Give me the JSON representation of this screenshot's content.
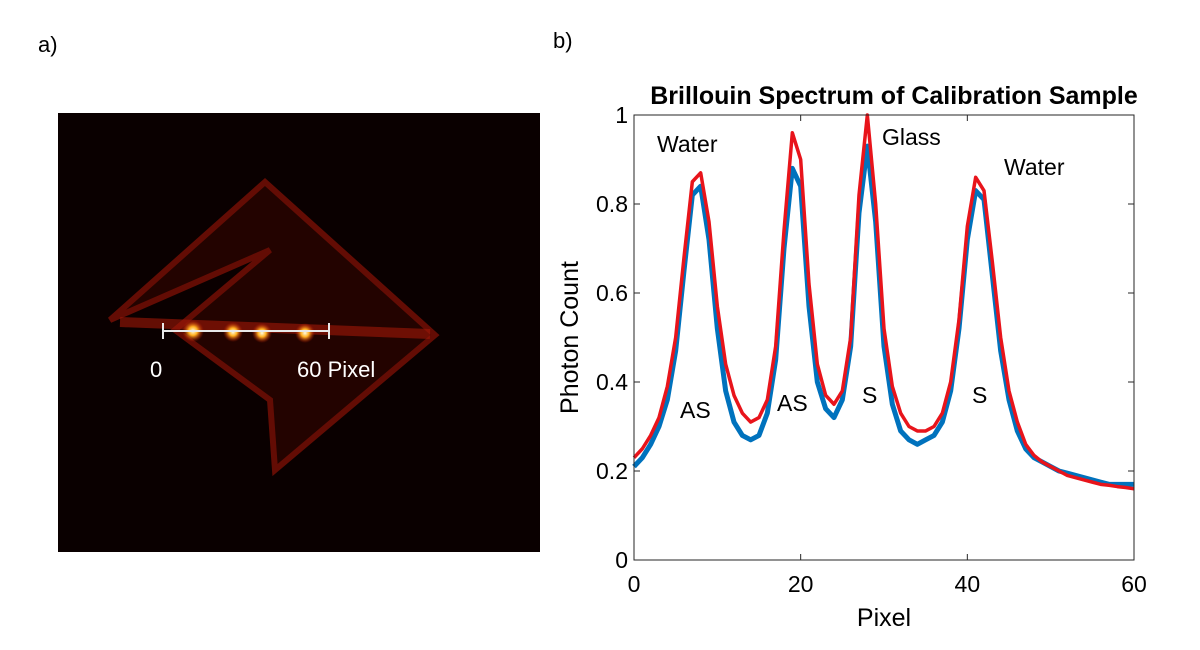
{
  "panel_labels": [
    "a)",
    "b)"
  ],
  "image": {
    "scale_labels": [
      "0",
      "60 Pixel"
    ]
  },
  "chart_data": {
    "type": "line",
    "title": "Brillouin Spectrum of Calibration Sample",
    "x_label": "Pixel",
    "y_label": "Photon Count",
    "x": [
      0,
      1,
      2,
      3,
      4,
      5,
      6,
      7,
      8,
      9,
      10,
      11,
      12,
      13,
      14,
      15,
      16,
      17,
      18,
      19,
      20,
      21,
      22,
      23,
      24,
      25,
      26,
      27,
      28,
      29,
      30,
      31,
      32,
      33,
      34,
      35,
      36,
      37,
      38,
      39,
      40,
      41,
      42,
      43,
      44,
      45,
      46,
      47,
      48,
      49,
      50,
      51,
      52,
      53,
      54,
      55,
      56,
      57,
      58,
      59,
      60
    ],
    "series": [
      {
        "color": "#0072bd",
        "values": [
          0.21,
          0.23,
          0.26,
          0.3,
          0.36,
          0.47,
          0.65,
          0.82,
          0.84,
          0.72,
          0.52,
          0.38,
          0.31,
          0.28,
          0.27,
          0.28,
          0.33,
          0.45,
          0.7,
          0.88,
          0.84,
          0.57,
          0.4,
          0.34,
          0.32,
          0.36,
          0.48,
          0.78,
          0.93,
          0.76,
          0.48,
          0.35,
          0.29,
          0.27,
          0.26,
          0.27,
          0.28,
          0.31,
          0.38,
          0.52,
          0.72,
          0.83,
          0.81,
          0.64,
          0.47,
          0.36,
          0.29,
          0.25,
          0.23,
          0.22,
          0.21,
          0.2,
          0.195,
          0.19,
          0.185,
          0.18,
          0.175,
          0.17,
          0.17,
          0.17,
          0.17
        ]
      },
      {
        "color": "#e8141b",
        "values": [
          0.23,
          0.25,
          0.28,
          0.32,
          0.39,
          0.5,
          0.68,
          0.85,
          0.87,
          0.76,
          0.57,
          0.44,
          0.37,
          0.33,
          0.31,
          0.32,
          0.36,
          0.48,
          0.74,
          0.96,
          0.9,
          0.62,
          0.44,
          0.37,
          0.35,
          0.38,
          0.5,
          0.82,
          1.0,
          0.8,
          0.52,
          0.39,
          0.33,
          0.3,
          0.29,
          0.29,
          0.3,
          0.33,
          0.4,
          0.54,
          0.75,
          0.86,
          0.83,
          0.67,
          0.5,
          0.38,
          0.31,
          0.26,
          0.235,
          0.22,
          0.21,
          0.2,
          0.19,
          0.185,
          0.18,
          0.175,
          0.17,
          0.168,
          0.165,
          0.163,
          0.16
        ]
      }
    ],
    "annotations": [
      "Water",
      "AS",
      "AS",
      "Glass",
      "S",
      "Water",
      "S"
    ],
    "xlim": [
      0,
      60
    ],
    "ylim": [
      0,
      1
    ],
    "xticks": [
      0,
      20,
      40,
      60
    ],
    "yticks": [
      0,
      0.2,
      0.4,
      0.6,
      0.8,
      1
    ]
  }
}
